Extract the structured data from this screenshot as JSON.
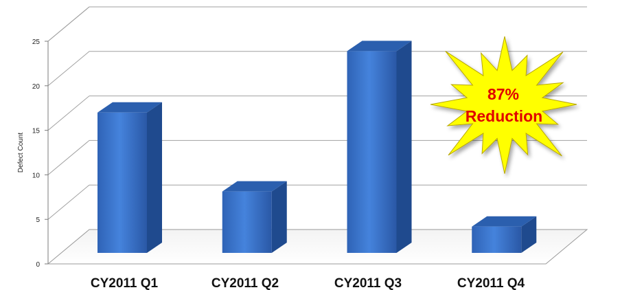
{
  "chart_data": {
    "type": "bar",
    "categories": [
      "CY2011 Q1",
      "CY2011 Q2",
      "CY2011 Q3",
      "CY2011 Q4"
    ],
    "values": [
      16,
      7,
      23,
      3
    ],
    "title": "",
    "xlabel": "",
    "ylabel": "Defect Count",
    "ylim": [
      0,
      25
    ],
    "yticks": [
      0,
      5,
      10,
      15,
      20,
      25
    ],
    "grid": true,
    "style": "3d",
    "bar_color": "#3b78d4",
    "annotation": {
      "line1": "87%",
      "line2": "Reduction",
      "fill": "#ffff00",
      "text_color": "#e00000"
    }
  }
}
